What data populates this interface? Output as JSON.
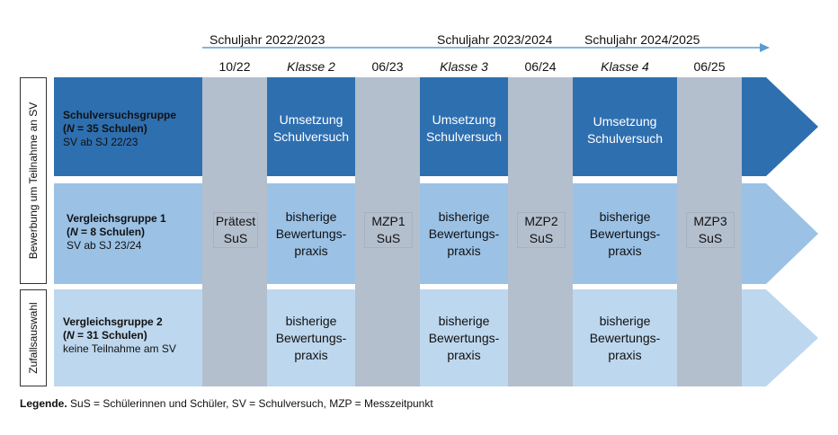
{
  "timeline": {
    "years": [
      "Schuljahr 2022/2023",
      "Schuljahr 2023/2024",
      "Schuljahr 2024/2025"
    ]
  },
  "columns": {
    "c1": "10/22",
    "c2": "Klasse 2",
    "c3": "06/23",
    "c4": "Klasse 3",
    "c5": "06/24",
    "c6": "Klasse 4",
    "c7": "06/25"
  },
  "side_labels": {
    "top": "Bewerbung um Teilnahme an SV",
    "bottom": "Zufallsauswahl"
  },
  "groups": [
    {
      "name": "Schulversuchsgruppe",
      "n_prefix": "(",
      "n_var": "N",
      "n_rest": " = 35 Schulen)",
      "note": "SV ab SJ 22/23",
      "cells": [
        "Umsetzung",
        "Schulversuch"
      ]
    },
    {
      "name": "Vergleichsgruppe 1",
      "n_prefix": "(",
      "n_var": "N",
      "n_rest": " = 8 Schulen)",
      "note": "SV ab SJ 23/24",
      "cells": [
        "bisherige",
        "Bewertungs-",
        "praxis"
      ]
    },
    {
      "name": "Vergleichsgruppe 2",
      "n_prefix": "(",
      "n_var": "N",
      "n_rest": " = 31 Schulen)",
      "note": "keine Teilnahme am SV",
      "cells": [
        "bisherige",
        "Bewertungs-",
        "praxis"
      ]
    }
  ],
  "measurements": {
    "m1": [
      "Prätest",
      "SuS"
    ],
    "m2": [
      "MZP1",
      "SuS"
    ],
    "m3": [
      "MZP2",
      "SuS"
    ],
    "m4": [
      "MZP3",
      "SuS"
    ]
  },
  "legend": {
    "title": "Legende.",
    "text": " SuS = Schülerinnen und Schüler, SV = Schulversuch, MZP = Messzeitpunkt"
  },
  "colors": {
    "row1": "#2e6fb0",
    "row2": "#9bc1e5",
    "row3": "#bdd7ee",
    "column": "#b4bfcd",
    "arrow": "#5b9bd5"
  }
}
